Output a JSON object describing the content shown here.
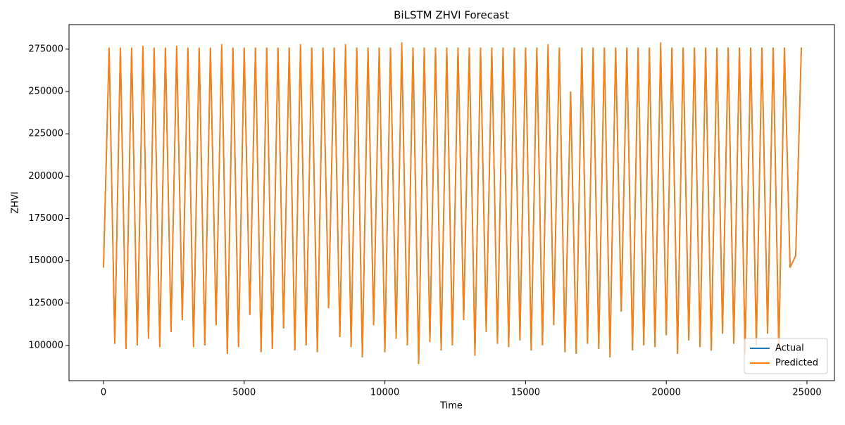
{
  "chart_data": {
    "type": "line",
    "title": "BiLSTM ZHVI Forecast",
    "x_label": "Time",
    "y_label": "ZHVI",
    "x": [
      0,
      200,
      400,
      600,
      800,
      1000,
      1200,
      1400,
      1600,
      1800,
      2000,
      2200,
      2400,
      2600,
      2800,
      3000,
      3200,
      3400,
      3600,
      3800,
      4000,
      4200,
      4400,
      4600,
      4800,
      5000,
      5200,
      5400,
      5600,
      5800,
      6000,
      6200,
      6400,
      6600,
      6800,
      7000,
      7200,
      7400,
      7600,
      7800,
      8000,
      8200,
      8400,
      8600,
      8800,
      9000,
      9200,
      9400,
      9600,
      9800,
      10000,
      10200,
      10400,
      10600,
      10800,
      11000,
      11200,
      11400,
      11600,
      11800,
      12000,
      12200,
      12400,
      12600,
      12800,
      13000,
      13200,
      13400,
      13600,
      13800,
      14000,
      14200,
      14400,
      14600,
      14800,
      15000,
      15200,
      15400,
      15600,
      15800,
      16000,
      16200,
      16400,
      16600,
      16800,
      17000,
      17200,
      17400,
      17600,
      17800,
      18000,
      18200,
      18400,
      18600,
      18800,
      19000,
      19200,
      19400,
      19600,
      19800,
      20000,
      20200,
      20400,
      20600,
      20800,
      21000,
      21200,
      21400,
      21600,
      21800,
      22000,
      22200,
      22400,
      22600,
      22800,
      23000,
      23200,
      23400,
      23600,
      23800,
      24000,
      24200,
      24400,
      24600,
      24800
    ],
    "series": [
      {
        "name": "Actual",
        "color": "#1f77b4",
        "values": [
          146000,
          276000,
          101000,
          276000,
          98000,
          276000,
          100000,
          276000,
          104000,
          276000,
          99000,
          276000,
          108000,
          276000,
          115000,
          276000,
          99000,
          276000,
          100000,
          276000,
          112000,
          276000,
          95000,
          276000,
          99000,
          276000,
          118000,
          276000,
          96000,
          276000,
          98000,
          276000,
          110000,
          276000,
          97000,
          276000,
          100000,
          276000,
          96000,
          276000,
          122000,
          276000,
          105000,
          276000,
          99000,
          276000,
          93000,
          276000,
          112000,
          276000,
          96000,
          276000,
          104000,
          276000,
          100000,
          276000,
          89000,
          276000,
          102000,
          276000,
          97000,
          276000,
          100000,
          276000,
          115000,
          276000,
          94000,
          276000,
          108000,
          276000,
          101000,
          276000,
          99000,
          276000,
          103000,
          276000,
          97000,
          276000,
          100000,
          276000,
          112000,
          276000,
          96000,
          250000,
          95000,
          276000,
          101000,
          276000,
          98000,
          276000,
          93000,
          276000,
          120000,
          276000,
          97000,
          276000,
          100000,
          276000,
          99000,
          276000,
          106000,
          276000,
          95000,
          276000,
          103000,
          276000,
          99000,
          276000,
          97000,
          276000,
          107000,
          276000,
          101000,
          276000,
          95000,
          276000,
          100000,
          276000,
          107000,
          276000,
          97000,
          276000,
          146000,
          153000,
          276000
        ]
      },
      {
        "name": "Predicted",
        "color": "#ff7f0e",
        "values": [
          146000,
          276000,
          101000,
          276000,
          98000,
          276000,
          100000,
          277000,
          104000,
          276000,
          99000,
          276000,
          108000,
          277000,
          115000,
          276000,
          99000,
          276000,
          100000,
          276000,
          112000,
          278000,
          95000,
          276000,
          99000,
          276000,
          118000,
          276000,
          96000,
          276000,
          98000,
          276000,
          110000,
          276000,
          97000,
          278000,
          100000,
          276000,
          96000,
          276000,
          122000,
          276000,
          105000,
          278000,
          99000,
          276000,
          93000,
          276000,
          112000,
          276000,
          96000,
          276000,
          104000,
          279000,
          100000,
          276000,
          89000,
          276000,
          102000,
          276000,
          97000,
          276000,
          100000,
          276000,
          115000,
          276000,
          94000,
          276000,
          108000,
          276000,
          101000,
          276000,
          99000,
          276000,
          103000,
          276000,
          97000,
          276000,
          100000,
          278000,
          112000,
          276000,
          96000,
          250000,
          95000,
          276000,
          101000,
          276000,
          98000,
          276000,
          93000,
          276000,
          120000,
          276000,
          97000,
          276000,
          100000,
          276000,
          99000,
          279000,
          106000,
          276000,
          95000,
          276000,
          103000,
          276000,
          99000,
          276000,
          97000,
          276000,
          107000,
          276000,
          101000,
          276000,
          95000,
          276000,
          100000,
          276000,
          107000,
          276000,
          97000,
          276000,
          146000,
          153000,
          276000
        ]
      }
    ],
    "xlim": [
      -1226,
      25976
    ],
    "ylim": [
      79200,
      289500
    ],
    "xticks": [
      0,
      5000,
      10000,
      15000,
      20000,
      25000
    ],
    "yticks": [
      100000,
      125000,
      150000,
      175000,
      200000,
      225000,
      250000,
      275000
    ],
    "legend": "lower right"
  }
}
